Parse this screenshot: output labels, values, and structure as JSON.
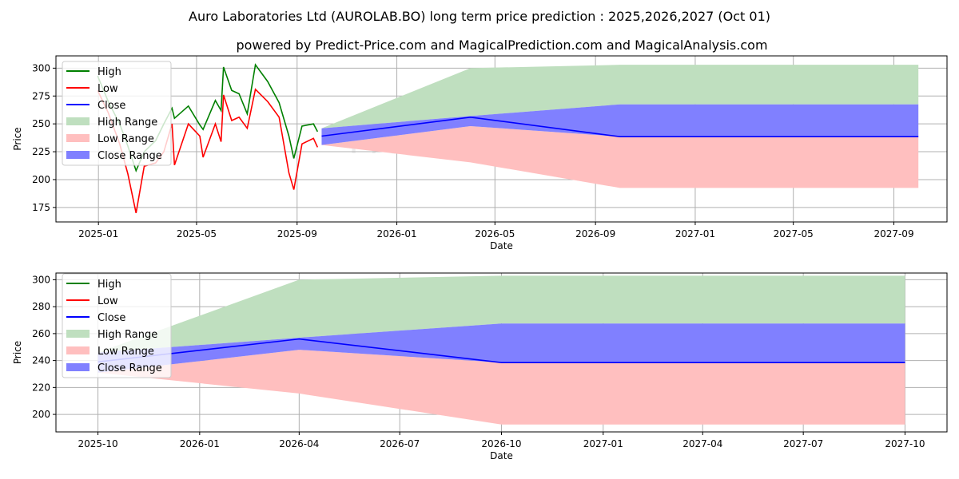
{
  "title": "Auro Laboratories Ltd (AUROLAB.BO) long term price prediction : 2025,2026,2027 (Oct 01)",
  "subtitle": "powered by Predict-Price.com and MagicalPrediction.com and MagicalAnalysis.com",
  "watermark": "Predict-Price.com",
  "colors": {
    "high": "#008000",
    "low": "#ff0000",
    "close": "#0000ff",
    "high_range": "#bfdfbf",
    "low_range": "#ffbfbf",
    "close_range": "#8080ff"
  },
  "chart_data": [
    {
      "type": "line",
      "xlabel": "Date",
      "ylabel": "Price",
      "xlim": [
        "2024-11-10",
        "2027-11-05"
      ],
      "ylim": [
        162,
        311
      ],
      "grid": true,
      "legend_position": "top-left",
      "legend": [
        "High",
        "Low",
        "Close",
        "High Range",
        "Low Range",
        "Close Range"
      ],
      "xticks": [
        {
          "date": "2025-01-01",
          "label": "2025-01"
        },
        {
          "date": "2025-05-01",
          "label": "2025-05"
        },
        {
          "date": "2025-09-01",
          "label": "2025-09"
        },
        {
          "date": "2026-01-01",
          "label": "2026-01"
        },
        {
          "date": "2026-05-01",
          "label": "2026-05"
        },
        {
          "date": "2026-09-01",
          "label": "2026-09"
        },
        {
          "date": "2027-01-01",
          "label": "2027-01"
        },
        {
          "date": "2027-05-01",
          "label": "2027-05"
        },
        {
          "date": "2027-09-01",
          "label": "2027-09"
        }
      ],
      "yticks": [
        175,
        200,
        225,
        250,
        275,
        300
      ],
      "history": {
        "dates": [
          "2024-12-31",
          "2025-01-13",
          "2025-01-27",
          "2025-02-06",
          "2025-02-16",
          "2025-02-26",
          "2025-03-12",
          "2025-03-22",
          "2025-04-01",
          "2025-04-04",
          "2025-04-21",
          "2025-05-05",
          "2025-05-09",
          "2025-05-24",
          "2025-05-31",
          "2025-06-03",
          "2025-06-13",
          "2025-06-22",
          "2025-07-02",
          "2025-07-12",
          "2025-07-27",
          "2025-08-10",
          "2025-08-22",
          "2025-08-28",
          "2025-09-07",
          "2025-09-21",
          "2025-09-26"
        ],
        "high": [
          293,
          270,
          250,
          230,
          208,
          225,
          235,
          250,
          264,
          255,
          266,
          249,
          245,
          271,
          262,
          301,
          280,
          277,
          259,
          303,
          288,
          269,
          239,
          219,
          248,
          250,
          243
        ],
        "low": [
          280,
          260,
          232,
          205,
          170,
          212,
          215,
          225,
          250,
          213,
          250,
          239,
          220,
          250,
          234,
          276,
          253,
          256,
          246,
          281,
          270,
          256,
          206,
          191,
          232,
          237,
          229
        ]
      },
      "forecast": {
        "dates": [
          "2025-10-01",
          "2026-04-01",
          "2026-10-01",
          "2027-10-01"
        ],
        "close": [
          239,
          256,
          238.5,
          238.5
        ],
        "close_range_low": [
          231,
          248,
          238.5,
          238.5
        ],
        "close_range_high": [
          246,
          257,
          267.5,
          267.5
        ],
        "high_range_high": [
          246,
          300,
          303,
          303
        ],
        "low_range_low": [
          231,
          215.5,
          192.5,
          192.5
        ]
      }
    },
    {
      "type": "line",
      "xlabel": "Date",
      "ylabel": "Price",
      "xlim": [
        "2025-08-24",
        "2027-11-08"
      ],
      "ylim": [
        187,
        305
      ],
      "grid": true,
      "legend_position": "top-left",
      "legend": [
        "High",
        "Low",
        "Close",
        "High Range",
        "Low Range",
        "Close Range"
      ],
      "xticks": [
        {
          "date": "2025-10-01",
          "label": "2025-10"
        },
        {
          "date": "2026-01-01",
          "label": "2026-01"
        },
        {
          "date": "2026-04-01",
          "label": "2026-04"
        },
        {
          "date": "2026-07-01",
          "label": "2026-07"
        },
        {
          "date": "2026-10-01",
          "label": "2026-10"
        },
        {
          "date": "2027-01-01",
          "label": "2027-01"
        },
        {
          "date": "2027-04-01",
          "label": "2027-04"
        },
        {
          "date": "2027-07-01",
          "label": "2027-07"
        },
        {
          "date": "2027-10-01",
          "label": "2027-10"
        }
      ],
      "yticks": [
        200,
        220,
        240,
        260,
        280,
        300
      ],
      "forecast": {
        "dates": [
          "2025-10-01",
          "2026-04-01",
          "2026-10-01",
          "2027-10-01"
        ],
        "close": [
          239,
          256,
          238.5,
          238.5
        ],
        "close_range_low": [
          231,
          248,
          238.5,
          238.5
        ],
        "close_range_high": [
          246,
          257,
          267.5,
          267.5
        ],
        "high_range_high": [
          246,
          300,
          303,
          303
        ],
        "low_range_low": [
          231,
          215.5,
          192.5,
          192.5
        ]
      }
    }
  ]
}
